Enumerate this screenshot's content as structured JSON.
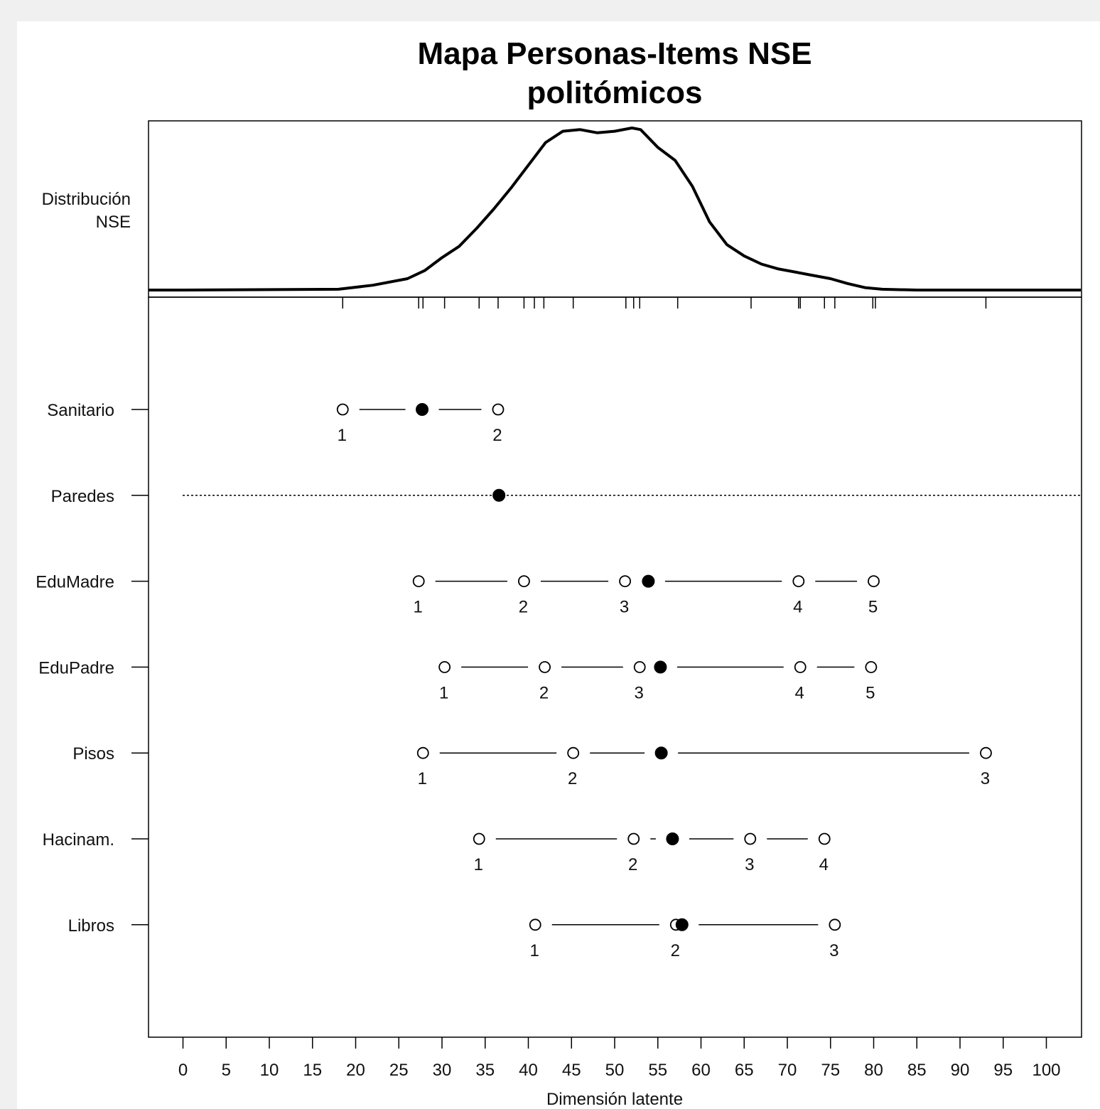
{
  "chart_data": {
    "type": "person-item map",
    "title_lines": [
      "Mapa Personas-Items NSE",
      "politómicos"
    ],
    "density_label_lines": [
      "Distribución",
      "NSE"
    ],
    "xlabel": "Dimensión latente",
    "xlim": [
      0,
      100
    ],
    "x_ticks": [
      0,
      5,
      10,
      15,
      20,
      25,
      30,
      35,
      40,
      45,
      50,
      55,
      60,
      65,
      70,
      75,
      80,
      85,
      90,
      95,
      100
    ],
    "density": {
      "x": [
        -4,
        0,
        18,
        22,
        26,
        28,
        30,
        32,
        34,
        36,
        38,
        40,
        42,
        44,
        46,
        48,
        50,
        52,
        53,
        55,
        57,
        59,
        61,
        63,
        65,
        67,
        69,
        71,
        73,
        75,
        77,
        79,
        81,
        85,
        100,
        104
      ],
      "y": [
        0,
        0,
        0.005,
        0.03,
        0.07,
        0.12,
        0.2,
        0.27,
        0.38,
        0.5,
        0.63,
        0.77,
        0.91,
        0.98,
        0.99,
        0.97,
        0.98,
        1.0,
        0.99,
        0.88,
        0.8,
        0.64,
        0.42,
        0.28,
        0.21,
        0.16,
        0.13,
        0.11,
        0.09,
        0.07,
        0.04,
        0.015,
        0.005,
        0,
        0,
        0
      ]
    },
    "rug_ticks": [
      18.5,
      27.3,
      27.8,
      30.3,
      34.3,
      36.5,
      39.5,
      40.7,
      41.8,
      45.2,
      51.3,
      52.2,
      52.9,
      57.3,
      65.8,
      71.3,
      71.5,
      74.3,
      75.5,
      79.9,
      80.2,
      93.0
    ],
    "items": [
      {
        "name": "Sanitario",
        "thresholds": [
          18.5,
          36.5
        ],
        "threshold_labels": [
          "1",
          "2"
        ],
        "location": 27.7,
        "dotted": false
      },
      {
        "name": "Paredes",
        "thresholds": [],
        "threshold_labels": [],
        "location": 36.6,
        "dotted": true
      },
      {
        "name": "EduMadre",
        "thresholds": [
          27.3,
          39.5,
          51.2,
          71.3,
          80.0
        ],
        "threshold_labels": [
          "1",
          "2",
          "3",
          "4",
          "5"
        ],
        "location": 53.9,
        "dotted": false
      },
      {
        "name": "EduPadre",
        "thresholds": [
          30.3,
          41.9,
          52.9,
          71.5,
          79.7
        ],
        "threshold_labels": [
          "1",
          "2",
          "3",
          "4",
          "5"
        ],
        "location": 55.3,
        "dotted": false
      },
      {
        "name": "Pisos",
        "thresholds": [
          27.8,
          45.2,
          93.0
        ],
        "threshold_labels": [
          "1",
          "2",
          "3"
        ],
        "location": 55.4,
        "dotted": false
      },
      {
        "name": "Hacinam.",
        "thresholds": [
          34.3,
          52.2,
          65.7,
          74.3
        ],
        "threshold_labels": [
          "1",
          "2",
          "3",
          "4"
        ],
        "location": 56.7,
        "dotted": false
      },
      {
        "name": "Libros",
        "thresholds": [
          40.8,
          57.1,
          75.5
        ],
        "threshold_labels": [
          "1",
          "2",
          "3"
        ],
        "location": 57.8,
        "dotted": false
      }
    ]
  }
}
